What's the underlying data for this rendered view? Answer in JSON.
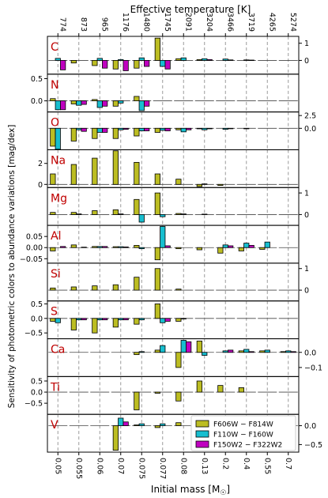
{
  "chart_data": {
    "type": "bar",
    "xlabel_bottom": "Initial mass [M",
    "xlabel_bottom_sub": "☉",
    "xlabel_bottom_close": "]",
    "xlabel_top": "Effective temperature [K]",
    "ylabel": "Sensitivity of photometric colors to abundance variations [mag/dex]",
    "masses": [
      "0.05",
      "0.055",
      "0.06",
      "0.07",
      "0.075",
      "0.077",
      "0.08",
      "0.13",
      "0.2",
      "0.4",
      "0.55",
      "0.7"
    ],
    "temperatures": [
      "774",
      "873",
      "965",
      "1176",
      "1480",
      "1745",
      "2091",
      "3204",
      "3466",
      "3719",
      "4265",
      "5274"
    ],
    "series_names": [
      "F606W − F814W",
      "F110W − F160W",
      "F150W2 − F322W2"
    ],
    "series_colors": [
      "#bcbd22",
      "#17becf",
      "#c000c0"
    ],
    "panels": [
      {
        "label": "C",
        "ylim": [
          -0.8,
          1.4
        ],
        "ticks_right": [
          {
            "v": 1,
            "t": "1"
          },
          {
            "v": 0,
            "t": "0"
          }
        ],
        "ticks_left": [],
        "values": [
          [
            0.0,
            0.12,
            -0.55
          ],
          [
            -0.15,
            0.0,
            0.0
          ],
          [
            -0.3,
            0.12,
            -0.45
          ],
          [
            -0.5,
            0.05,
            -0.6
          ],
          [
            -0.45,
            0.15,
            -0.35
          ],
          [
            1.3,
            -0.35,
            -0.5
          ],
          [
            0.1,
            0.15,
            0.0
          ],
          [
            0.05,
            0.1,
            0.05
          ],
          [
            0.0,
            0.08,
            0.03
          ],
          [
            0.0,
            0.03,
            0.02
          ],
          [
            0.0,
            0.0,
            0.0
          ],
          [
            0.0,
            0.0,
            0.0
          ]
        ]
      },
      {
        "label": "N",
        "ylim": [
          -0.25,
          0.6
        ],
        "ticks_right": [],
        "ticks_left": [
          {
            "v": 0.5,
            "t": "0.5"
          },
          {
            "v": 0,
            "t": "0.0"
          }
        ],
        "values": [
          [
            0.05,
            -0.2,
            -0.2
          ],
          [
            -0.07,
            -0.1,
            -0.08
          ],
          [
            0.03,
            -0.15,
            -0.12
          ],
          [
            -0.12,
            -0.05,
            0.0
          ],
          [
            0.1,
            -0.22,
            -0.12
          ],
          [
            0.0,
            0.0,
            0.0
          ],
          [
            0.0,
            0.0,
            0.0
          ],
          [
            0.0,
            0.0,
            0.0
          ],
          [
            0.0,
            0.0,
            0.0
          ],
          [
            0.0,
            0.0,
            0.0
          ],
          [
            0.0,
            0.0,
            0.0
          ],
          [
            0.0,
            0.0,
            0.0
          ]
        ]
      },
      {
        "label": "O",
        "ylim": [
          -4.2,
          3.2
        ],
        "ticks_right": [
          {
            "v": 2.5,
            "t": "2.5"
          },
          {
            "v": 0,
            "t": "0.0"
          }
        ],
        "ticks_left": [],
        "values": [
          [
            -3.5,
            -4.1,
            0.0
          ],
          [
            -2.5,
            -0.3,
            -0.6
          ],
          [
            -2.0,
            -0.8,
            -0.8
          ],
          [
            -2.0,
            -0.3,
            -0.2
          ],
          [
            -1.5,
            -0.5,
            -0.5
          ],
          [
            -0.8,
            -0.4,
            -0.5
          ],
          [
            -0.3,
            -0.7,
            -0.3
          ],
          [
            -0.1,
            -0.3,
            -0.1
          ],
          [
            0.0,
            -0.2,
            -0.05
          ],
          [
            0.0,
            -0.1,
            0.0
          ],
          [
            0.0,
            0.0,
            0.0
          ],
          [
            0.0,
            0.0,
            0.0
          ]
        ]
      },
      {
        "label": "Na",
        "ylim": [
          -0.3,
          3.3
        ],
        "ticks_right": [],
        "ticks_left": [
          {
            "v": 2,
            "t": "2"
          },
          {
            "v": 0,
            "t": "0"
          }
        ],
        "values": [
          [
            1.0,
            0.0,
            0.0
          ],
          [
            1.9,
            0.0,
            0.0
          ],
          [
            2.5,
            0.0,
            0.0
          ],
          [
            3.2,
            0.0,
            0.0
          ],
          [
            2.1,
            0.0,
            0.0
          ],
          [
            1.0,
            0.0,
            0.0
          ],
          [
            0.5,
            0.0,
            0.0
          ],
          [
            -0.2,
            0.05,
            0.0
          ],
          [
            -0.1,
            0.0,
            0.0
          ],
          [
            0.0,
            0.0,
            0.0
          ],
          [
            0.0,
            0.0,
            0.0
          ],
          [
            0.0,
            0.0,
            0.0
          ]
        ]
      },
      {
        "label": "Mg",
        "ylim": [
          -0.5,
          1.25
        ],
        "ticks_right": [
          {
            "v": 1,
            "t": "1"
          },
          {
            "v": 0,
            "t": "0"
          }
        ],
        "ticks_left": [],
        "values": [
          [
            0.1,
            0.0,
            0.0
          ],
          [
            0.1,
            0.03,
            0.0
          ],
          [
            0.18,
            0.0,
            0.0
          ],
          [
            0.22,
            0.03,
            0.0
          ],
          [
            0.7,
            -0.35,
            0.0
          ],
          [
            1.0,
            -0.1,
            0.0
          ],
          [
            0.05,
            0.03,
            0.0
          ],
          [
            0.0,
            0.02,
            0.0
          ],
          [
            0.0,
            0.0,
            0.0
          ],
          [
            0.0,
            0.0,
            0.0
          ],
          [
            0.0,
            0.0,
            0.0
          ],
          [
            0.0,
            0.0,
            0.0
          ]
        ]
      },
      {
        "label": "Al",
        "ylim": [
          -0.07,
          0.1
        ],
        "ticks_right": [],
        "ticks_left": [
          {
            "v": 0.05,
            "t": "0.05"
          },
          {
            "v": 0,
            "t": "0.00"
          },
          {
            "v": -0.05,
            "t": "−0.05"
          }
        ],
        "values": [
          [
            -0.015,
            0.0,
            0.005
          ],
          [
            0.012,
            0.0,
            0.002
          ],
          [
            0.005,
            0.005,
            0.005
          ],
          [
            0.004,
            0.004,
            0.003
          ],
          [
            0.01,
            -0.005,
            0.0
          ],
          [
            -0.055,
            0.095,
            0.008
          ],
          [
            -0.005,
            0.0,
            0.0
          ],
          [
            -0.01,
            0.0,
            0.0
          ],
          [
            -0.025,
            0.012,
            0.008
          ],
          [
            -0.015,
            0.02,
            0.01
          ],
          [
            -0.008,
            0.025,
            0.0
          ],
          [
            0.0,
            0.0,
            0.0
          ]
        ]
      },
      {
        "label": "Si",
        "ylim": [
          -0.5,
          1.25
        ],
        "ticks_right": [
          {
            "v": 1,
            "t": "1"
          },
          {
            "v": 0,
            "t": "0"
          }
        ],
        "ticks_left": [],
        "values": [
          [
            0.1,
            0.0,
            0.0
          ],
          [
            0.15,
            0.0,
            0.0
          ],
          [
            0.2,
            0.0,
            0.0
          ],
          [
            0.25,
            0.0,
            0.0
          ],
          [
            0.6,
            0.0,
            0.0
          ],
          [
            1.0,
            0.0,
            0.0
          ],
          [
            0.05,
            0.0,
            0.0
          ],
          [
            0.0,
            0.0,
            0.0
          ],
          [
            0.0,
            0.0,
            0.0
          ],
          [
            0.0,
            0.0,
            0.0
          ],
          [
            0.0,
            0.0,
            0.0
          ],
          [
            0.0,
            0.0,
            0.0
          ]
        ]
      },
      {
        "label": "S",
        "ylim": [
          -0.7,
          0.6
        ],
        "ticks_right": [],
        "ticks_left": [
          {
            "v": 0.5,
            "t": "0.5"
          },
          {
            "v": 0,
            "t": "0.0"
          },
          {
            "v": -0.5,
            "t": "−0.5"
          }
        ],
        "values": [
          [
            -0.1,
            -0.15,
            0.0
          ],
          [
            -0.4,
            -0.05,
            -0.05
          ],
          [
            -0.5,
            -0.05,
            -0.05
          ],
          [
            -0.3,
            -0.05,
            -0.05
          ],
          [
            -0.2,
            -0.05,
            0.0
          ],
          [
            0.5,
            -0.15,
            -0.1
          ],
          [
            -0.1,
            -0.02,
            0.0
          ],
          [
            0.0,
            0.0,
            0.0
          ],
          [
            0.0,
            0.0,
            0.0
          ],
          [
            0.0,
            0.0,
            0.0
          ],
          [
            0.0,
            0.0,
            0.0
          ],
          [
            0.0,
            0.0,
            0.0
          ]
        ]
      },
      {
        "label": "Ca",
        "ylim": [
          -0.16,
          0.09
        ],
        "ticks_right": [
          {
            "v": 0,
            "t": "0.0"
          },
          {
            "v": -0.1,
            "t": "−0.1"
          }
        ],
        "ticks_left": [],
        "values": [
          [
            0.0,
            0.0,
            0.0
          ],
          [
            0.0,
            0.0,
            0.0
          ],
          [
            0.0,
            0.0,
            0.0
          ],
          [
            0.0,
            0.0,
            0.0
          ],
          [
            -0.015,
            0.005,
            0.0
          ],
          [
            0.015,
            0.045,
            0.0
          ],
          [
            -0.1,
            0.08,
            0.07
          ],
          [
            0.075,
            -0.02,
            0.0
          ],
          [
            0.0,
            0.01,
            0.015
          ],
          [
            0.01,
            0.02,
            0.005
          ],
          [
            0.01,
            0.015,
            0.0
          ],
          [
            0.005,
            0.01,
            0.005
          ]
        ]
      },
      {
        "label": "Ti",
        "ylim": [
          -1.0,
          0.7
        ],
        "ticks_right": [],
        "ticks_left": [
          {
            "v": 0.5,
            "t": "0.5"
          },
          {
            "v": 0,
            "t": "0.0"
          },
          {
            "v": -0.5,
            "t": "−0.5"
          }
        ],
        "values": [
          [
            0.0,
            0.0,
            0.0
          ],
          [
            0.0,
            0.0,
            0.0
          ],
          [
            0.0,
            0.0,
            0.0
          ],
          [
            0.0,
            0.0,
            0.0
          ],
          [
            -0.8,
            0.0,
            0.0
          ],
          [
            -0.05,
            0.0,
            0.0
          ],
          [
            -0.4,
            0.0,
            0.0
          ],
          [
            0.5,
            0.0,
            0.0
          ],
          [
            0.3,
            0.0,
            0.0
          ],
          [
            0.2,
            0.0,
            0.0
          ],
          [
            0.0,
            0.0,
            0.0
          ],
          [
            0.0,
            0.0,
            0.0
          ]
        ]
      },
      {
        "label": "V",
        "ylim": [
          -0.7,
          0.3
        ],
        "ticks_right": [
          {
            "v": 0,
            "t": "0.0"
          },
          {
            "v": -0.5,
            "t": "−0.5"
          }
        ],
        "ticks_left": [],
        "values": [
          [
            0.0,
            0.0,
            0.0
          ],
          [
            0.0,
            0.0,
            0.0
          ],
          [
            0.0,
            0.0,
            0.0
          ],
          [
            -0.65,
            0.2,
            0.1
          ],
          [
            0.02,
            0.05,
            0.0
          ],
          [
            -0.05,
            0.05,
            0.0
          ],
          [
            0.08,
            0.0,
            0.0
          ],
          [
            0.0,
            0.0,
            0.0
          ],
          [
            0.0,
            0.0,
            0.0
          ],
          [
            0.0,
            0.0,
            0.0
          ],
          [
            0.0,
            0.0,
            0.0
          ],
          [
            0.0,
            0.0,
            0.0
          ]
        ]
      }
    ]
  }
}
